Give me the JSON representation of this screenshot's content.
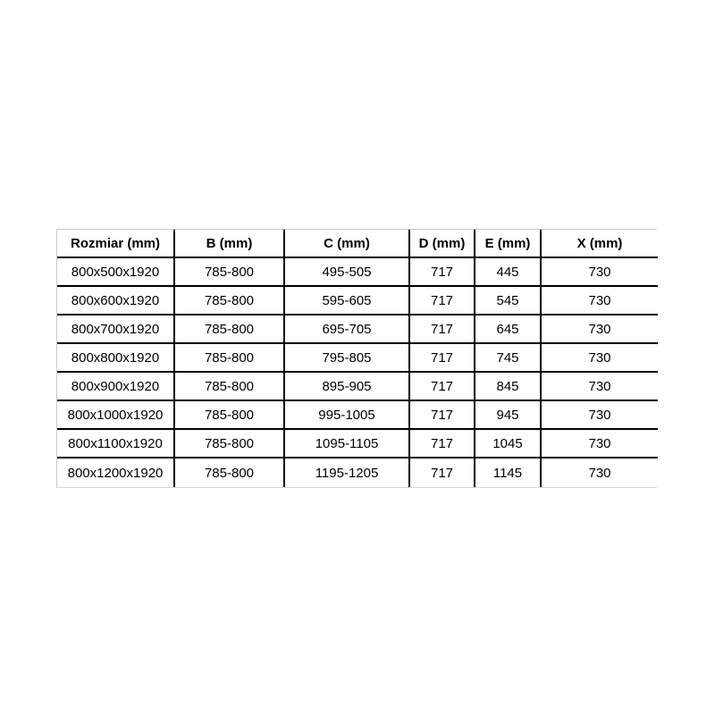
{
  "page": {
    "background_color": "#ffffff",
    "text_color": "#000000",
    "inner_border_color": "#000000",
    "outer_border_color": "#c9c9c9"
  },
  "table": {
    "headers": [
      "Rozmiar (mm)",
      "B (mm)",
      "C (mm)",
      "D (mm)",
      "E (mm)",
      "X (mm)"
    ],
    "rows": [
      [
        "800x500x1920",
        "785-800",
        "495-505",
        "717",
        "445",
        "730"
      ],
      [
        "800x600x1920",
        "785-800",
        "595-605",
        "717",
        "545",
        "730"
      ],
      [
        "800x700x1920",
        "785-800",
        "695-705",
        "717",
        "645",
        "730"
      ],
      [
        "800x800x1920",
        "785-800",
        "795-805",
        "717",
        "745",
        "730"
      ],
      [
        "800x900x1920",
        "785-800",
        "895-905",
        "717",
        "845",
        "730"
      ],
      [
        "800x1000x1920",
        "785-800",
        "995-1005",
        "717",
        "945",
        "730"
      ],
      [
        "800x1100x1920",
        "785-800",
        "1095-1105",
        "717",
        "1045",
        "730"
      ],
      [
        "800x1200x1920",
        "785-800",
        "1195-1205",
        "717",
        "1145",
        "730"
      ]
    ]
  }
}
